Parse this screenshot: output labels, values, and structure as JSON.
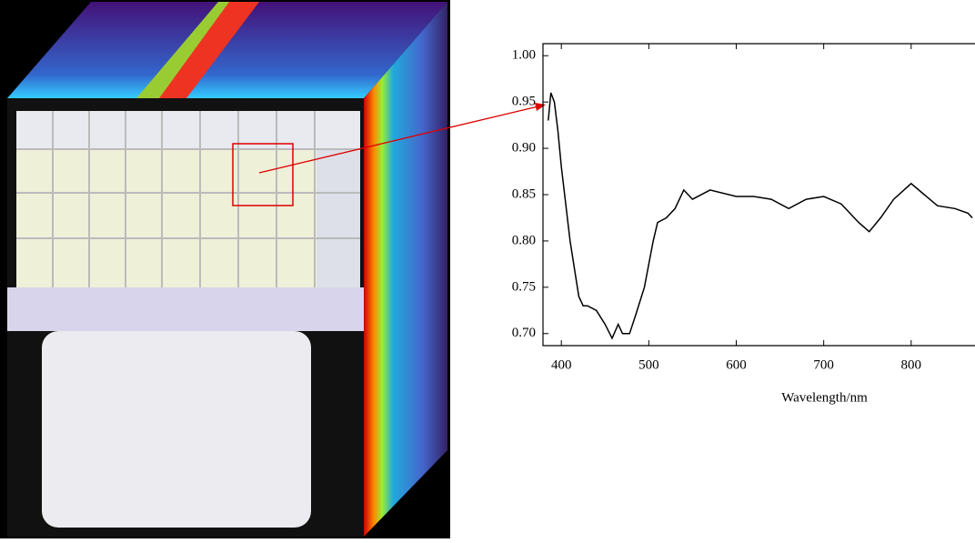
{
  "chart_data": {
    "type": "line",
    "x_label": "Wavelength/nm",
    "x": [
      385,
      388,
      392,
      396,
      400,
      405,
      410,
      415,
      420,
      425,
      430,
      440,
      450,
      458,
      465,
      470,
      478,
      485,
      495,
      505,
      510,
      520,
      530,
      540,
      550,
      570,
      600,
      620,
      640,
      660,
      680,
      700,
      720,
      740,
      752,
      765,
      780,
      800,
      815,
      830,
      850,
      865,
      870
    ],
    "values": [
      0.93,
      0.96,
      0.95,
      0.92,
      0.88,
      0.84,
      0.8,
      0.77,
      0.74,
      0.73,
      0.73,
      0.725,
      0.71,
      0.695,
      0.71,
      0.7,
      0.7,
      0.72,
      0.75,
      0.8,
      0.82,
      0.825,
      0.835,
      0.855,
      0.845,
      0.855,
      0.848,
      0.848,
      0.845,
      0.835,
      0.845,
      0.848,
      0.84,
      0.82,
      0.81,
      0.825,
      0.845,
      0.862,
      0.85,
      0.838,
      0.835,
      0.83,
      0.825
    ],
    "color": "#000000",
    "xlim": [
      379,
      873
    ],
    "ylim": [
      0.687,
      1.013
    ],
    "xticks": [
      400,
      500,
      600,
      700,
      800
    ],
    "yticks": [
      {
        "value": 0.7,
        "label": "0.70"
      },
      {
        "value": 0.75,
        "label": "0.75"
      },
      {
        "value": 0.8,
        "label": "0.80"
      },
      {
        "value": 0.85,
        "label": "0.85"
      },
      {
        "value": 0.9,
        "label": "0.90"
      },
      {
        "value": 0.95,
        "label": "0.95"
      },
      {
        "value": 1.0,
        "label": "1.00"
      }
    ]
  }
}
